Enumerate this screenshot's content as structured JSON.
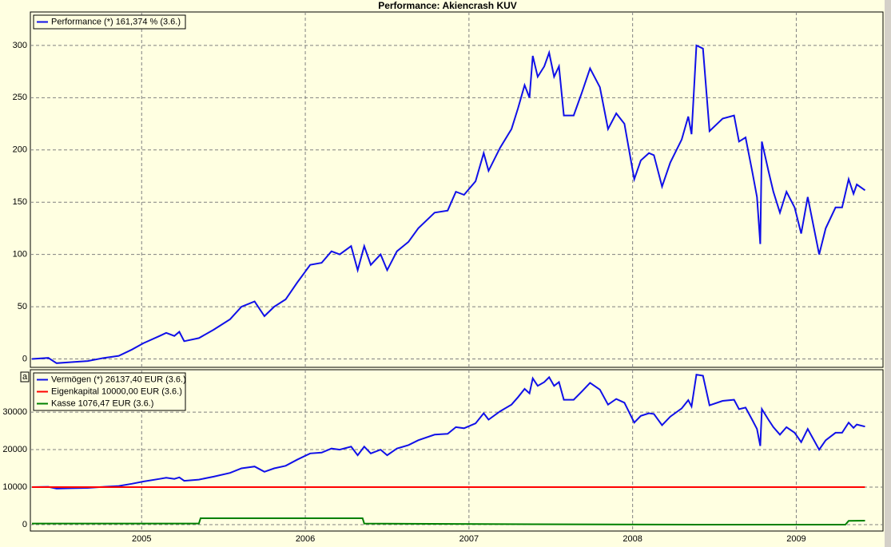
{
  "chart_data": [
    {
      "type": "line",
      "title": "Performance: Akiencrash KUV",
      "ylim": [
        -8,
        332
      ],
      "yticks": [
        0,
        50,
        100,
        150,
        200,
        250,
        300
      ],
      "grid": true,
      "legend": "upper left",
      "series": [
        {
          "name": "Performance (*) 161,374 % (3.6.)",
          "color": "#1010e8",
          "x": [
            2004.33,
            2004.43,
            2004.48,
            2004.57,
            2004.67,
            2004.77,
            2004.86,
            2004.94,
            2005.01,
            2005.11,
            2005.15,
            2005.2,
            2005.23,
            2005.26,
            2005.35,
            2005.44,
            2005.54,
            2005.61,
            2005.69,
            2005.75,
            2005.81,
            2005.88,
            2005.95,
            2006.03,
            2006.1,
            2006.16,
            2006.21,
            2006.28,
            2006.32,
            2006.36,
            2006.4,
            2006.46,
            2006.5,
            2006.56,
            2006.63,
            2006.69,
            2006.79,
            2006.87,
            2006.92,
            2006.97,
            2007.04,
            2007.09,
            2007.12,
            2007.19,
            2007.26,
            2007.3,
            2007.34,
            2007.37,
            2007.39,
            2007.42,
            2007.46,
            2007.49,
            2007.52,
            2007.55,
            2007.58,
            2007.64,
            2007.69,
            2007.74,
            2007.8,
            2007.85,
            2007.9,
            2007.95,
            2008.01,
            2008.05,
            2008.1,
            2008.13,
            2008.18,
            2008.23,
            2008.3,
            2008.34,
            2008.36,
            2008.39,
            2008.43,
            2008.47,
            2008.55,
            2008.62,
            2008.65,
            2008.69,
            2008.73,
            2008.76,
            2008.78,
            2008.79,
            2008.83,
            2008.86,
            2008.9,
            2008.94,
            2008.99,
            2009.03,
            2009.07,
            2009.14,
            2009.18,
            2009.24,
            2009.28,
            2009.32,
            2009.35,
            2009.37,
            2009.42
          ],
          "values": [
            0,
            1,
            -4,
            -3,
            -2,
            1,
            3,
            9,
            15,
            22,
            25,
            22,
            26,
            17,
            20,
            28,
            38,
            50,
            55,
            41,
            50,
            57,
            73,
            90,
            92,
            103,
            100,
            108,
            85,
            108,
            90,
            100,
            85,
            103,
            112,
            125,
            140,
            142,
            160,
            157,
            170,
            197,
            180,
            202,
            220,
            240,
            262,
            250,
            290,
            270,
            280,
            293,
            270,
            280,
            233,
            233,
            255,
            278,
            260,
            220,
            235,
            225,
            172,
            190,
            197,
            195,
            165,
            188,
            210,
            232,
            215,
            300,
            297,
            218,
            230,
            233,
            208,
            212,
            180,
            155,
            110,
            208,
            180,
            160,
            140,
            160,
            145,
            120,
            155,
            100,
            125,
            145,
            145,
            172,
            158,
            167,
            161.374
          ]
        }
      ]
    },
    {
      "type": "line",
      "panel_label": "a",
      "xlim": [
        2004.32,
        2009.53
      ],
      "xticks": [
        2005,
        2006,
        2007,
        2008,
        2009
      ],
      "ylim": [
        -1700,
        41300
      ],
      "yticks": [
        0,
        10000,
        20000,
        30000
      ],
      "grid": true,
      "legend": "upper left",
      "series": [
        {
          "name": "Vermögen (*) 26137,40 EUR (3.6.)",
          "color": "#1010e8",
          "x": [
            2004.33,
            2004.43,
            2004.48,
            2004.57,
            2004.67,
            2004.77,
            2004.86,
            2004.94,
            2005.01,
            2005.11,
            2005.15,
            2005.2,
            2005.23,
            2005.26,
            2005.35,
            2005.44,
            2005.54,
            2005.61,
            2005.69,
            2005.75,
            2005.81,
            2005.88,
            2005.95,
            2006.03,
            2006.1,
            2006.16,
            2006.21,
            2006.28,
            2006.32,
            2006.36,
            2006.4,
            2006.46,
            2006.5,
            2006.56,
            2006.63,
            2006.69,
            2006.79,
            2006.87,
            2006.92,
            2006.97,
            2007.04,
            2007.09,
            2007.12,
            2007.19,
            2007.26,
            2007.3,
            2007.34,
            2007.37,
            2007.39,
            2007.42,
            2007.46,
            2007.49,
            2007.52,
            2007.55,
            2007.58,
            2007.64,
            2007.69,
            2007.74,
            2007.8,
            2007.85,
            2007.9,
            2007.95,
            2008.01,
            2008.05,
            2008.1,
            2008.13,
            2008.18,
            2008.23,
            2008.3,
            2008.34,
            2008.36,
            2008.39,
            2008.43,
            2008.47,
            2008.55,
            2008.62,
            2008.65,
            2008.69,
            2008.73,
            2008.76,
            2008.78,
            2008.79,
            2008.83,
            2008.86,
            2008.9,
            2008.94,
            2008.99,
            2009.03,
            2009.07,
            2009.14,
            2009.18,
            2009.24,
            2009.28,
            2009.32,
            2009.35,
            2009.37,
            2009.42
          ],
          "values": [
            10000,
            10100,
            9600,
            9700,
            9800,
            10100,
            10300,
            10900,
            11500,
            12200,
            12500,
            12200,
            12600,
            11700,
            12000,
            12800,
            13800,
            15000,
            15500,
            14100,
            15000,
            15700,
            17300,
            19000,
            19200,
            20300,
            20000,
            20800,
            18500,
            20800,
            19000,
            20000,
            18500,
            20300,
            21200,
            22500,
            24000,
            24200,
            26000,
            25700,
            27000,
            29700,
            28000,
            30200,
            32000,
            34000,
            36200,
            35000,
            39000,
            37000,
            38000,
            39300,
            37000,
            38000,
            33300,
            33300,
            35500,
            37800,
            36000,
            32000,
            33500,
            32500,
            27200,
            29000,
            29700,
            29500,
            26500,
            28800,
            31000,
            33200,
            31500,
            40000,
            39700,
            31800,
            33000,
            33300,
            30800,
            31200,
            28000,
            25500,
            21000,
            30800,
            28000,
            26000,
            24000,
            26000,
            24500,
            22000,
            25500,
            20000,
            22500,
            24500,
            24500,
            27200,
            25800,
            26700,
            26137.4
          ]
        },
        {
          "name": "Eigenkapital 10000,00 EUR (3.6.)",
          "color": "#ff0000",
          "x": [
            2004.33,
            2009.42
          ],
          "values": [
            10000,
            10000
          ]
        },
        {
          "name": "Kasse 1076,47 EUR (3.6.)",
          "color": "#008000",
          "x": [
            2004.33,
            2005.35,
            2005.36,
            2006.35,
            2006.36,
            2007.4,
            2008.4,
            2009.3,
            2009.32,
            2009.42
          ],
          "values": [
            300,
            300,
            1700,
            1700,
            300,
            100,
            0,
            0,
            1000,
            1076.47
          ]
        }
      ]
    }
  ]
}
